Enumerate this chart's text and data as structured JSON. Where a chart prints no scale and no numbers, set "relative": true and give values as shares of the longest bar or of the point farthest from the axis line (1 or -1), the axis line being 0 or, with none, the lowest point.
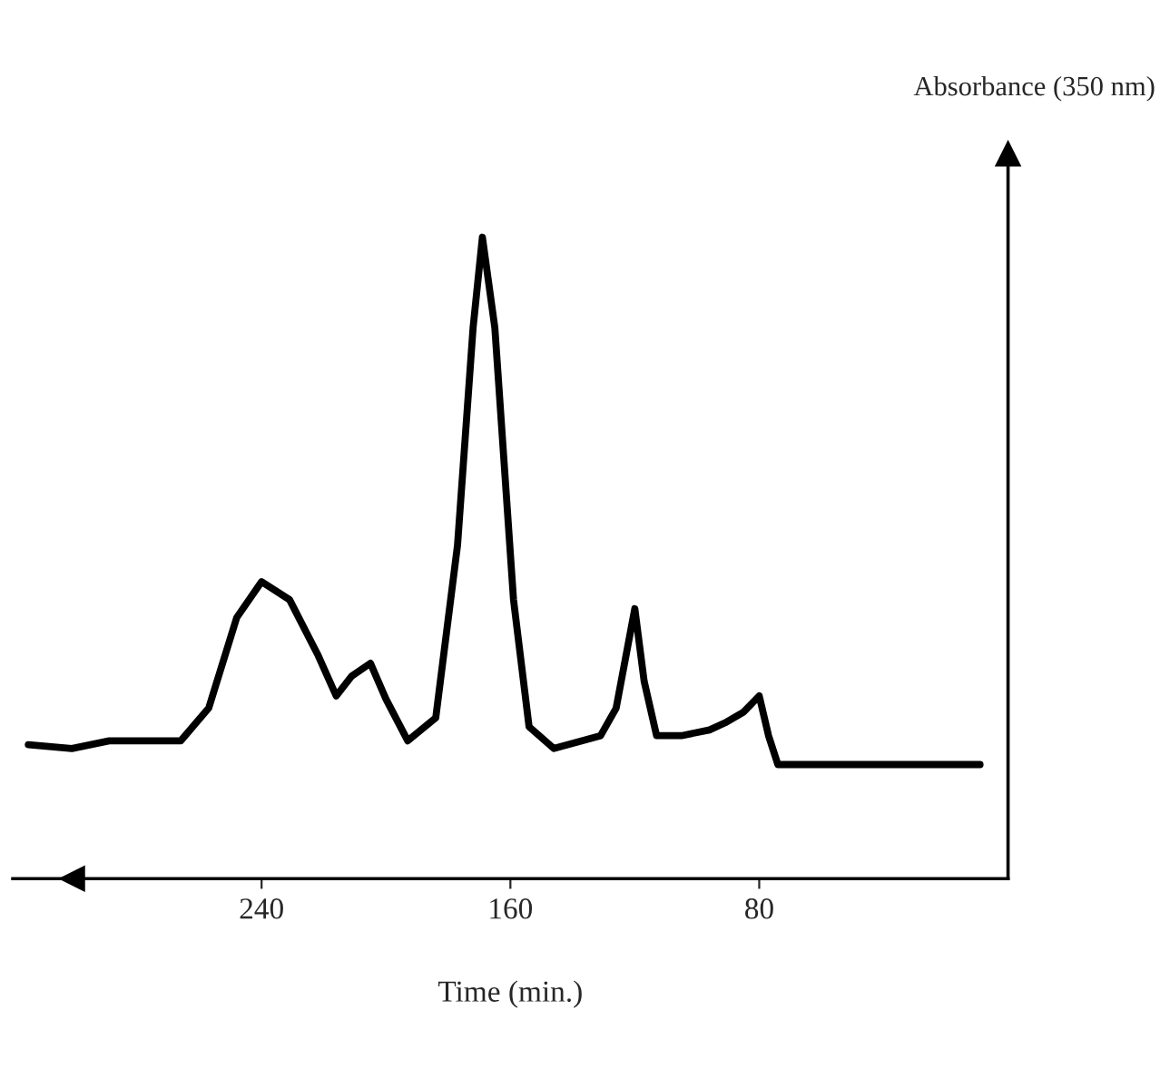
{
  "chart_data": {
    "type": "line",
    "relative": true,
    "xlabel": "Time (min.)",
    "ylabel": "Absorbance (350 nm)",
    "xlim": [
      320,
      0
    ],
    "xticks": [
      240,
      160,
      80
    ],
    "grid": false,
    "legend": false,
    "marker": "none",
    "line_style": "solid",
    "series": [
      {
        "color": "#000000",
        "x": [
          315,
          301,
          289,
          266,
          257,
          248,
          240,
          231,
          222,
          216,
          211,
          205,
          200,
          193,
          184,
          177,
          172,
          169,
          165,
          159,
          154,
          146,
          131,
          126,
          120,
          117,
          113,
          105,
          96,
          91,
          85,
          80,
          77,
          74,
          9
        ],
        "values": [
          0.209,
          0.203,
          0.215,
          0.215,
          0.266,
          0.407,
          0.463,
          0.435,
          0.35,
          0.285,
          0.316,
          0.336,
          0.28,
          0.215,
          0.251,
          0.52,
          0.859,
          1.0,
          0.859,
          0.435,
          0.237,
          0.203,
          0.223,
          0.266,
          0.421,
          0.308,
          0.223,
          0.223,
          0.232,
          0.243,
          0.26,
          0.285,
          0.223,
          0.178,
          0.178
        ]
      }
    ]
  }
}
